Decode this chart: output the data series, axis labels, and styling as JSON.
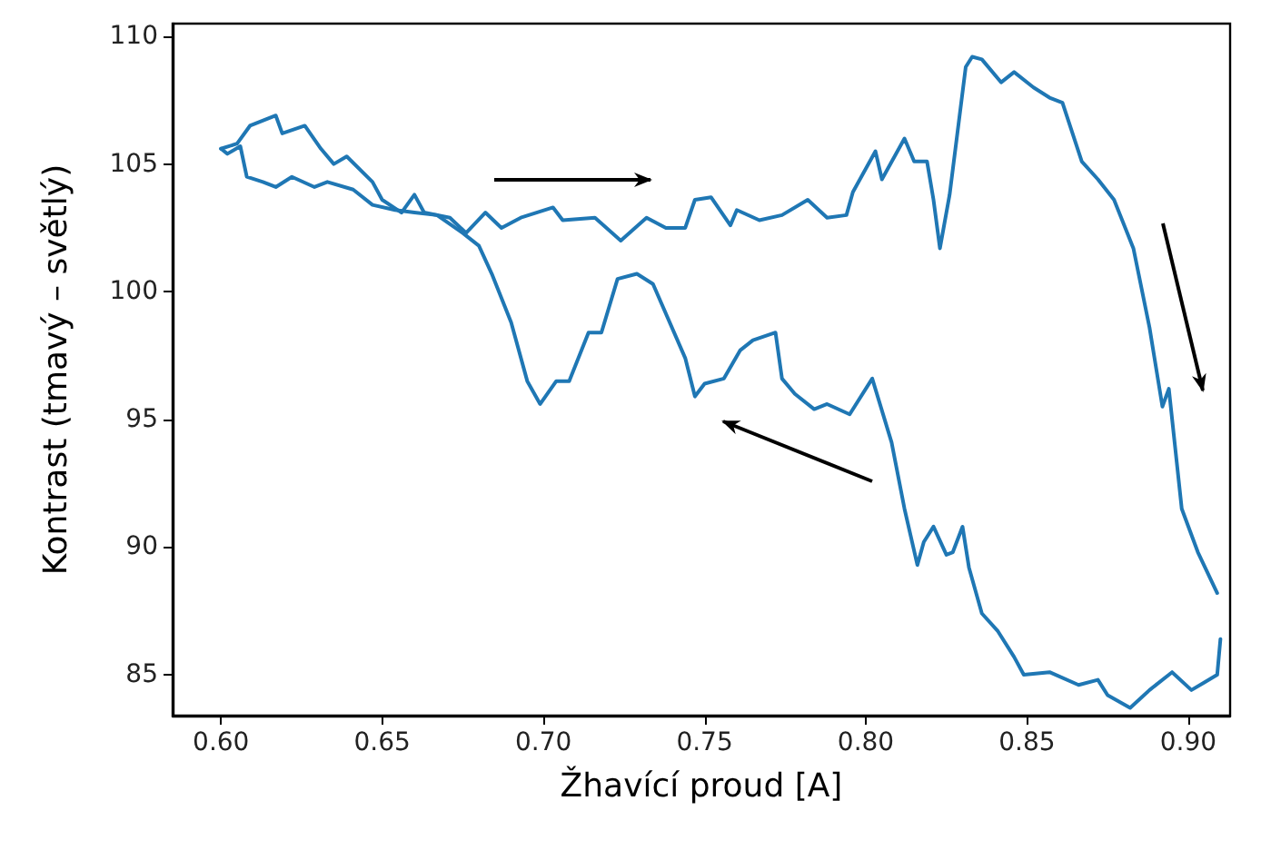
{
  "chart_data": {
    "type": "line",
    "xlabel": "Žhavící proud [A]",
    "ylabel": "Kontrast (tmavý – světlý)",
    "xlim": [
      0.585,
      0.913
    ],
    "ylim": [
      83.4,
      110.5
    ],
    "xticks": [
      {
        "value": 0.6,
        "label": "0.60"
      },
      {
        "value": 0.65,
        "label": "0.65"
      },
      {
        "value": 0.7,
        "label": "0.70"
      },
      {
        "value": 0.75,
        "label": "0.75"
      },
      {
        "value": 0.8,
        "label": "0.80"
      },
      {
        "value": 0.85,
        "label": "0.85"
      },
      {
        "value": 0.9,
        "label": "0.90"
      }
    ],
    "yticks": [
      85,
      90,
      95,
      100,
      105,
      110
    ],
    "series": [
      {
        "color": "#1f77b4",
        "x": [
          0.6,
          0.605,
          0.609,
          0.617,
          0.619,
          0.626,
          0.631,
          0.635,
          0.639,
          0.647,
          0.65,
          0.656,
          0.66,
          0.663,
          0.671,
          0.676,
          0.682,
          0.687,
          0.693,
          0.703,
          0.706,
          0.716,
          0.724,
          0.732,
          0.738,
          0.744,
          0.747,
          0.752,
          0.758,
          0.76,
          0.767,
          0.774,
          0.782,
          0.788,
          0.794,
          0.796,
          0.803,
          0.805,
          0.812,
          0.815,
          0.819,
          0.821,
          0.823,
          0.826,
          0.831,
          0.833,
          0.836,
          0.842,
          0.846,
          0.852,
          0.857,
          0.861,
          0.867,
          0.872,
          0.877,
          0.883,
          0.888,
          0.892,
          0.894,
          0.898,
          0.903,
          0.909
        ],
        "values": [
          105.6,
          105.8,
          106.5,
          106.9,
          106.2,
          106.5,
          105.6,
          105.0,
          105.3,
          104.3,
          103.6,
          103.1,
          103.8,
          103.1,
          102.9,
          102.3,
          103.1,
          102.5,
          102.9,
          103.3,
          102.8,
          102.9,
          102.0,
          102.9,
          102.5,
          102.5,
          103.6,
          103.7,
          102.6,
          103.2,
          102.8,
          103.0,
          103.6,
          102.9,
          103.0,
          103.9,
          105.5,
          104.4,
          106.0,
          105.1,
          105.1,
          103.6,
          101.7,
          103.8,
          108.8,
          109.2,
          109.1,
          108.2,
          108.6,
          108.0,
          107.6,
          107.4,
          105.1,
          104.4,
          103.6,
          101.7,
          98.6,
          95.5,
          96.2,
          91.5,
          89.8,
          88.2
        ]
      },
      {
        "color": "#1f77b4",
        "x": [
          0.91,
          0.909,
          0.905,
          0.901,
          0.895,
          0.888,
          0.882,
          0.875,
          0.872,
          0.866,
          0.857,
          0.849,
          0.846,
          0.841,
          0.836,
          0.832,
          0.83,
          0.827,
          0.825,
          0.821,
          0.818,
          0.816,
          0.812,
          0.808,
          0.802,
          0.795,
          0.788,
          0.784,
          0.778,
          0.774,
          0.772,
          0.765,
          0.761,
          0.756,
          0.75,
          0.747,
          0.744,
          0.734,
          0.729,
          0.723,
          0.718,
          0.714,
          0.708,
          0.704,
          0.699,
          0.695,
          0.69,
          0.684,
          0.68,
          0.675,
          0.667,
          0.66,
          0.654,
          0.647,
          0.641,
          0.633,
          0.629,
          0.622,
          0.617,
          0.613,
          0.608,
          0.606,
          0.602,
          0.6
        ],
        "values": [
          86.4,
          85.0,
          84.7,
          84.4,
          85.1,
          84.4,
          83.7,
          84.2,
          84.8,
          84.6,
          85.1,
          85.0,
          85.7,
          86.7,
          87.4,
          89.2,
          90.8,
          89.8,
          89.7,
          90.8,
          90.2,
          89.3,
          91.5,
          94.1,
          96.6,
          95.2,
          95.6,
          95.4,
          96.0,
          96.6,
          98.4,
          98.1,
          97.7,
          96.6,
          96.4,
          95.9,
          97.4,
          100.3,
          100.7,
          100.5,
          98.4,
          98.4,
          96.5,
          96.5,
          95.6,
          96.5,
          98.8,
          100.7,
          101.8,
          102.3,
          103.0,
          103.1,
          103.2,
          103.4,
          104.0,
          104.3,
          104.1,
          104.5,
          104.1,
          104.3,
          104.5,
          105.7,
          105.4,
          105.6
        ]
      }
    ]
  }
}
